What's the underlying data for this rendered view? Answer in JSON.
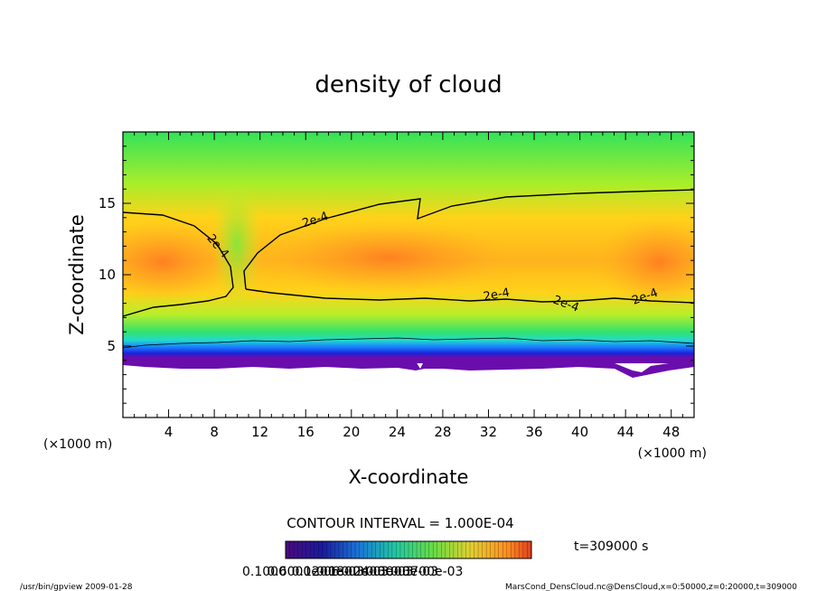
{
  "chart_data": {
    "type": "heatmap",
    "title": "density of cloud",
    "xlabel": "X-coordinate",
    "ylabel": "Z-coordinate",
    "x_unit": "(×1000 m)",
    "y_unit": "(×1000 m)",
    "xlim": [
      0,
      50
    ],
    "ylim": [
      0,
      20
    ],
    "x_ticks": [
      "4",
      "8",
      "12",
      "16",
      "20",
      "24",
      "28",
      "32",
      "36",
      "40",
      "44",
      "48"
    ],
    "y_ticks": [
      "5",
      "10",
      "15"
    ],
    "contour_interval_text": "CONTOUR INTERVAL = 1.000E-04",
    "time_text": "t=309000 s",
    "contour_label": "2e-4",
    "contour_label_count": 5,
    "colorbar_labels": [
      "0.1000",
      "0.6000e-06",
      "0.1200e-03",
      "0.1800e-03",
      "0.2400e-03",
      "0.3000e-03",
      "0.3700e-03"
    ],
    "footer_left": "/usr/bin/gpview  2009-01-28",
    "footer_right": "MarsCond_DensCloud.nc@DensCloud,x=0:50000,z=0:20000,t=309000",
    "colors": {
      "background": "#ffffff",
      "frame": "#000000",
      "low": "#6a0dad",
      "mid": "#22ee22",
      "high": "#ff7722"
    }
  }
}
